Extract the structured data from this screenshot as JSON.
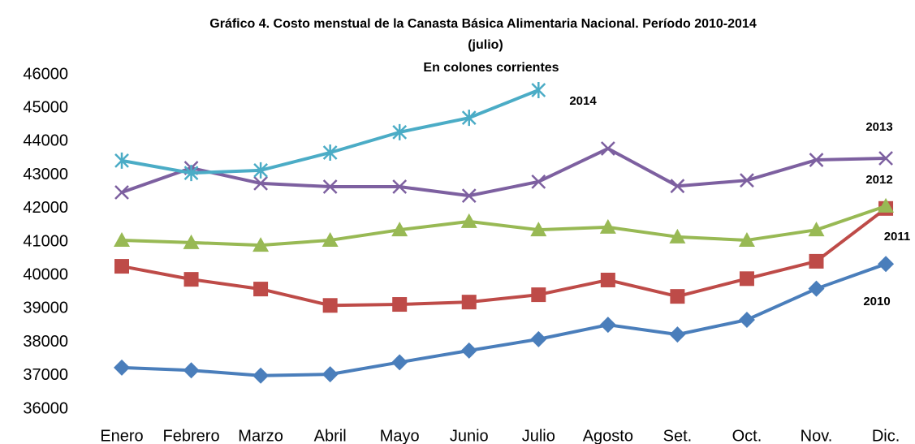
{
  "chart_data": {
    "type": "line",
    "title": "Gráfico 4.  Costo  menstual de la Canasta Básica Alimentaria Nacional. Período 2010-2014",
    "subtitle": "(julio)",
    "annotation": "En colones corrientes",
    "categories": [
      "Enero",
      "Febrero",
      "Marzo",
      "Abril",
      "Mayo",
      "Junio",
      "Julio",
      "Agosto",
      "Set.",
      "Oct.",
      "Nov.",
      "Dic."
    ],
    "ylim": [
      36000,
      46000
    ],
    "yticks": [
      36000,
      37000,
      38000,
      39000,
      40000,
      41000,
      42000,
      43000,
      44000,
      45000,
      46000
    ],
    "grid": false,
    "series": [
      {
        "name": "2010",
        "color": "#4a7ebb",
        "marker": "diamond",
        "values": [
          37240,
          37160,
          37000,
          37040,
          37400,
          37750,
          38090,
          38520,
          38230,
          38670,
          39600,
          40340
        ]
      },
      {
        "name": "2011",
        "color": "#be4b48",
        "marker": "square",
        "values": [
          40270,
          39880,
          39590,
          39100,
          39130,
          39200,
          39420,
          39860,
          39370,
          39900,
          40420,
          42000
        ]
      },
      {
        "name": "2012",
        "color": "#98b954",
        "marker": "triangle",
        "values": [
          41050,
          40980,
          40900,
          41050,
          41360,
          41610,
          41360,
          41440,
          41150,
          41050,
          41360,
          42070
        ]
      },
      {
        "name": "2013",
        "color": "#7d60a0",
        "marker": "x",
        "values": [
          42480,
          43210,
          42750,
          42650,
          42650,
          42380,
          42800,
          43790,
          42670,
          42840,
          43450,
          43500
        ]
      },
      {
        "name": "2014",
        "color": "#4bacc6",
        "marker": "star",
        "values": [
          43430,
          43060,
          43140,
          43670,
          44280,
          44710,
          45540,
          null,
          null,
          null,
          null,
          null
        ]
      }
    ]
  }
}
